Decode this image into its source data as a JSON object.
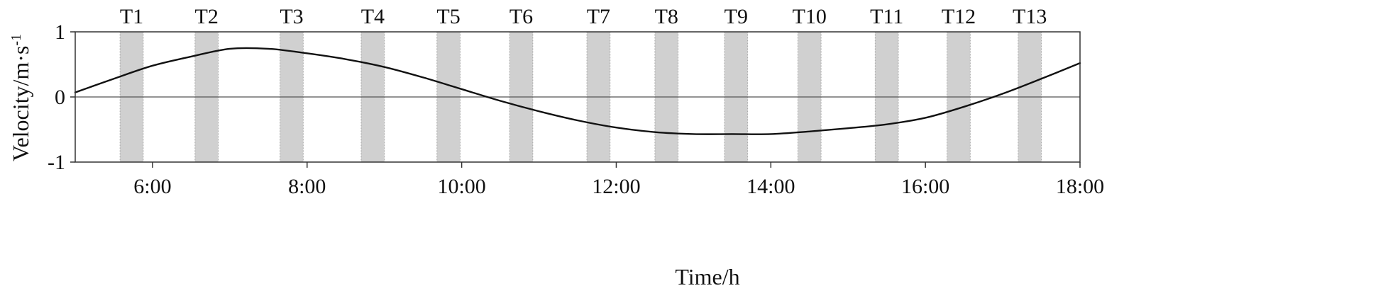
{
  "chart_data": {
    "type": "line",
    "xlabel": "Time/h",
    "ylabel": "Velocity/m·s",
    "ylabel_superscript": "-1",
    "xlim": [
      5,
      18
    ],
    "ylim": [
      -1,
      1
    ],
    "x_ticks": [
      {
        "value": 6,
        "label": "6:00"
      },
      {
        "value": 8,
        "label": "8:00"
      },
      {
        "value": 10,
        "label": "10:00"
      },
      {
        "value": 12,
        "label": "12:00"
      },
      {
        "value": 14,
        "label": "14:00"
      },
      {
        "value": 16,
        "label": "16:00"
      },
      {
        "value": 18,
        "label": "18:00"
      }
    ],
    "y_ticks": [
      {
        "value": 1,
        "label": "1"
      },
      {
        "value": 0,
        "label": "0"
      },
      {
        "value": -1,
        "label": "-1"
      }
    ],
    "zero_line": true,
    "bands": [
      {
        "label": "T1",
        "start": 5.58,
        "end": 5.88
      },
      {
        "label": "T2",
        "start": 6.55,
        "end": 6.85
      },
      {
        "label": "T3",
        "start": 7.65,
        "end": 7.95
      },
      {
        "label": "T4",
        "start": 8.7,
        "end": 9.0
      },
      {
        "label": "T5",
        "start": 9.68,
        "end": 9.98
      },
      {
        "label": "T6",
        "start": 10.62,
        "end": 10.92
      },
      {
        "label": "T7",
        "start": 11.62,
        "end": 11.92
      },
      {
        "label": "T8",
        "start": 12.5,
        "end": 12.8
      },
      {
        "label": "T9",
        "start": 13.4,
        "end": 13.7
      },
      {
        "label": "T10",
        "start": 14.35,
        "end": 14.65
      },
      {
        "label": "T11",
        "start": 15.35,
        "end": 15.65
      },
      {
        "label": "T12",
        "start": 16.28,
        "end": 16.58
      },
      {
        "label": "T13",
        "start": 17.2,
        "end": 17.5
      }
    ],
    "series": [
      {
        "color": "#111111",
        "x": [
          5.0,
          5.5,
          6.0,
          6.5,
          7.0,
          7.5,
          8.0,
          8.5,
          9.0,
          9.5,
          10.0,
          10.5,
          11.0,
          11.5,
          12.0,
          12.5,
          13.0,
          13.5,
          14.0,
          14.5,
          15.0,
          15.5,
          16.0,
          16.5,
          17.0,
          17.5,
          18.0
        ],
        "y": [
          0.07,
          0.28,
          0.48,
          0.62,
          0.74,
          0.74,
          0.67,
          0.58,
          0.46,
          0.3,
          0.12,
          -0.06,
          -0.22,
          -0.36,
          -0.47,
          -0.54,
          -0.57,
          -0.57,
          -0.57,
          -0.53,
          -0.48,
          -0.42,
          -0.32,
          -0.15,
          0.05,
          0.28,
          0.52
        ]
      }
    ]
  }
}
